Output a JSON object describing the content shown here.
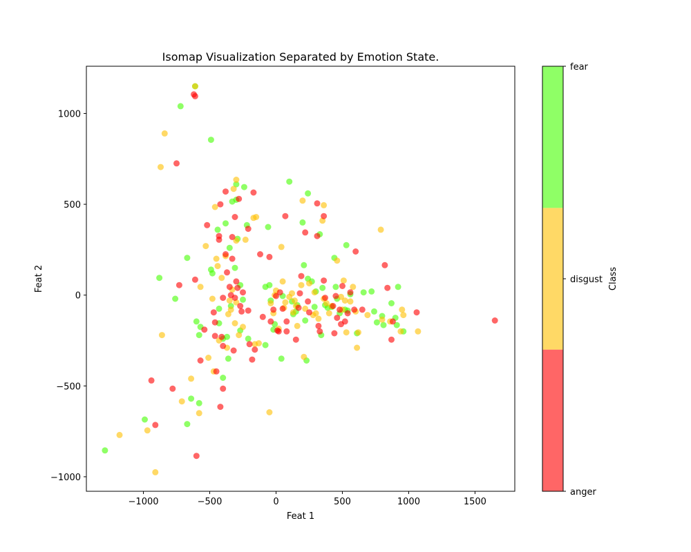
{
  "chart_data": {
    "type": "scatter",
    "title": "Isomap Visualization Separated by Emotion State.",
    "xlabel": "Feat 1",
    "ylabel": "Feat 2",
    "xlim": [
      -1430,
      1800
    ],
    "ylim": [
      -1080,
      1260
    ],
    "xticks": [
      -1000,
      -500,
      0,
      500,
      1000,
      1500
    ],
    "yticks": [
      -1000,
      -500,
      0,
      500,
      1000
    ],
    "grid": false,
    "colorbar": {
      "label": "Class",
      "classes": [
        "anger",
        "disgust",
        "fear"
      ],
      "colors": [
        "#ff0000",
        "#ffc000",
        "#44ff00"
      ],
      "alpha": 0.6
    },
    "series": [
      {
        "name": "fear",
        "color": "#44ff00",
        "points": [
          [
            -1290,
            -855
          ],
          [
            -990,
            -685
          ],
          [
            -670,
            -710
          ],
          [
            -640,
            -570
          ],
          [
            -580,
            -595
          ],
          [
            -720,
            1040
          ],
          [
            -610,
            1150
          ],
          [
            -490,
            855
          ],
          [
            -880,
            95
          ],
          [
            -760,
            -20
          ],
          [
            -670,
            205
          ],
          [
            -600,
            -145
          ],
          [
            -570,
            -175
          ],
          [
            -580,
            -220
          ],
          [
            -490,
            140
          ],
          [
            -480,
            120
          ],
          [
            -440,
            360
          ],
          [
            -380,
            395
          ],
          [
            -350,
            260
          ],
          [
            -340,
            -60
          ],
          [
            -330,
            515
          ],
          [
            -310,
            150
          ],
          [
            -300,
            525
          ],
          [
            -290,
            310
          ],
          [
            -270,
            55
          ],
          [
            -240,
            595
          ],
          [
            -220,
            385
          ],
          [
            -250,
            -25
          ],
          [
            -430,
            -75
          ],
          [
            -430,
            -155
          ],
          [
            -400,
            -240
          ],
          [
            -370,
            -230
          ],
          [
            -360,
            -350
          ],
          [
            -400,
            -455
          ],
          [
            -300,
            610
          ],
          [
            -270,
            -195
          ],
          [
            -210,
            -240
          ],
          [
            -80,
            -275
          ],
          [
            -80,
            45
          ],
          [
            -60,
            375
          ],
          [
            -50,
            55
          ],
          [
            -40,
            -30
          ],
          [
            -20,
            -190
          ],
          [
            -10,
            -160
          ],
          [
            40,
            -350
          ],
          [
            50,
            -5
          ],
          [
            100,
            625
          ],
          [
            120,
            -35
          ],
          [
            130,
            -105
          ],
          [
            150,
            -90
          ],
          [
            160,
            -55
          ],
          [
            200,
            400
          ],
          [
            210,
            165
          ],
          [
            220,
            -140
          ],
          [
            230,
            -360
          ],
          [
            240,
            560
          ],
          [
            240,
            90
          ],
          [
            270,
            75
          ],
          [
            290,
            -65
          ],
          [
            300,
            20
          ],
          [
            330,
            335
          ],
          [
            340,
            -220
          ],
          [
            350,
            40
          ],
          [
            370,
            -55
          ],
          [
            390,
            -70
          ],
          [
            420,
            -65
          ],
          [
            440,
            205
          ],
          [
            450,
            45
          ],
          [
            460,
            -20
          ],
          [
            480,
            -100
          ],
          [
            520,
            -80
          ],
          [
            530,
            275
          ],
          [
            540,
            -85
          ],
          [
            560,
            5
          ],
          [
            610,
            -210
          ],
          [
            660,
            15
          ],
          [
            720,
            20
          ],
          [
            740,
            -90
          ],
          [
            760,
            -150
          ],
          [
            800,
            -115
          ],
          [
            810,
            -165
          ],
          [
            870,
            -45
          ],
          [
            900,
            -125
          ],
          [
            910,
            -165
          ],
          [
            920,
            45
          ],
          [
            960,
            -200
          ]
        ]
      },
      {
        "name": "disgust",
        "color": "#ffc000",
        "points": [
          [
            -1180,
            -770
          ],
          [
            -970,
            -745
          ],
          [
            -910,
            -975
          ],
          [
            -870,
            705
          ],
          [
            -860,
            -220
          ],
          [
            -840,
            890
          ],
          [
            -710,
            -585
          ],
          [
            -640,
            -460
          ],
          [
            -610,
            1150
          ],
          [
            -580,
            -650
          ],
          [
            -570,
            45
          ],
          [
            -530,
            270
          ],
          [
            -510,
            -345
          ],
          [
            -480,
            -20
          ],
          [
            -470,
            -420
          ],
          [
            -460,
            485
          ],
          [
            -450,
            200
          ],
          [
            -440,
            160
          ],
          [
            -430,
            -250
          ],
          [
            -410,
            95
          ],
          [
            -380,
            215
          ],
          [
            -370,
            -290
          ],
          [
            -360,
            -105
          ],
          [
            -350,
            -30
          ],
          [
            -340,
            -80
          ],
          [
            -330,
            30
          ],
          [
            -320,
            585
          ],
          [
            -310,
            -155
          ],
          [
            -300,
            635
          ],
          [
            -300,
            300
          ],
          [
            -300,
            -40
          ],
          [
            -280,
            -220
          ],
          [
            -250,
            -175
          ],
          [
            -230,
            305
          ],
          [
            -170,
            425
          ],
          [
            -160,
            -270
          ],
          [
            -150,
            430
          ],
          [
            -130,
            -265
          ],
          [
            -50,
            -645
          ],
          [
            -40,
            -45
          ],
          [
            -20,
            -100
          ],
          [
            -10,
            0
          ],
          [
            0,
            25
          ],
          [
            20,
            -185
          ],
          [
            40,
            265
          ],
          [
            50,
            75
          ],
          [
            60,
            -70
          ],
          [
            70,
            -40
          ],
          [
            100,
            -10
          ],
          [
            120,
            10
          ],
          [
            130,
            -95
          ],
          [
            140,
            -30
          ],
          [
            150,
            -60
          ],
          [
            160,
            -170
          ],
          [
            190,
            55
          ],
          [
            200,
            520
          ],
          [
            210,
            -340
          ],
          [
            220,
            -75
          ],
          [
            250,
            65
          ],
          [
            280,
            -110
          ],
          [
            290,
            15
          ],
          [
            300,
            -100
          ],
          [
            320,
            -130
          ],
          [
            350,
            410
          ],
          [
            360,
            495
          ],
          [
            360,
            -20
          ],
          [
            380,
            -45
          ],
          [
            400,
            -100
          ],
          [
            420,
            -60
          ],
          [
            460,
            190
          ],
          [
            490,
            -10
          ],
          [
            500,
            -80
          ],
          [
            510,
            80
          ],
          [
            520,
            -30
          ],
          [
            530,
            -205
          ],
          [
            560,
            -35
          ],
          [
            580,
            45
          ],
          [
            600,
            -90
          ],
          [
            610,
            -290
          ],
          [
            620,
            -205
          ],
          [
            690,
            -110
          ],
          [
            790,
            360
          ],
          [
            800,
            -135
          ],
          [
            860,
            -145
          ],
          [
            940,
            -200
          ],
          [
            950,
            -80
          ],
          [
            960,
            -110
          ],
          [
            1070,
            -200
          ]
        ]
      },
      {
        "name": "anger",
        "color": "#ff0000",
        "points": [
          [
            -940,
            -470
          ],
          [
            -910,
            -715
          ],
          [
            -780,
            -515
          ],
          [
            -750,
            725
          ],
          [
            -730,
            55
          ],
          [
            -620,
            1105
          ],
          [
            -610,
            1095
          ],
          [
            -610,
            85
          ],
          [
            -600,
            -885
          ],
          [
            -570,
            -360
          ],
          [
            -540,
            -190
          ],
          [
            -520,
            385
          ],
          [
            -470,
            -95
          ],
          [
            -460,
            -150
          ],
          [
            -460,
            -225
          ],
          [
            -450,
            -420
          ],
          [
            -430,
            305
          ],
          [
            -430,
            325
          ],
          [
            -420,
            500
          ],
          [
            -420,
            -615
          ],
          [
            -410,
            -230
          ],
          [
            -400,
            -15
          ],
          [
            -400,
            -280
          ],
          [
            -400,
            -515
          ],
          [
            -380,
            225
          ],
          [
            -380,
            570
          ],
          [
            -370,
            125
          ],
          [
            -350,
            45
          ],
          [
            -340,
            0
          ],
          [
            -330,
            320
          ],
          [
            -330,
            200
          ],
          [
            -320,
            -305
          ],
          [
            -310,
            430
          ],
          [
            -310,
            -15
          ],
          [
            -300,
            75
          ],
          [
            -290,
            40
          ],
          [
            -280,
            530
          ],
          [
            -270,
            -60
          ],
          [
            -260,
            -90
          ],
          [
            -250,
            15
          ],
          [
            -210,
            365
          ],
          [
            -210,
            -85
          ],
          [
            -200,
            -270
          ],
          [
            -180,
            -355
          ],
          [
            -170,
            565
          ],
          [
            -160,
            -300
          ],
          [
            -120,
            225
          ],
          [
            -100,
            -120
          ],
          [
            -50,
            210
          ],
          [
            -40,
            -145
          ],
          [
            -20,
            -80
          ],
          [
            0,
            -5
          ],
          [
            10,
            -195
          ],
          [
            20,
            -200
          ],
          [
            30,
            15
          ],
          [
            50,
            -75
          ],
          [
            70,
            435
          ],
          [
            80,
            -200
          ],
          [
            80,
            -145
          ],
          [
            150,
            -245
          ],
          [
            170,
            -70
          ],
          [
            180,
            10
          ],
          [
            190,
            105
          ],
          [
            220,
            345
          ],
          [
            240,
            -35
          ],
          [
            250,
            -95
          ],
          [
            310,
            505
          ],
          [
            310,
            325
          ],
          [
            320,
            -170
          ],
          [
            330,
            -200
          ],
          [
            360,
            435
          ],
          [
            360,
            80
          ],
          [
            370,
            -15
          ],
          [
            430,
            -60
          ],
          [
            440,
            -210
          ],
          [
            450,
            -5
          ],
          [
            460,
            -125
          ],
          [
            480,
            -80
          ],
          [
            490,
            -160
          ],
          [
            500,
            50
          ],
          [
            520,
            -145
          ],
          [
            540,
            -100
          ],
          [
            560,
            15
          ],
          [
            590,
            -80
          ],
          [
            600,
            240
          ],
          [
            650,
            -80
          ],
          [
            820,
            165
          ],
          [
            840,
            40
          ],
          [
            870,
            -245
          ],
          [
            880,
            -145
          ],
          [
            1060,
            -95
          ],
          [
            1650,
            -140
          ]
        ]
      }
    ]
  }
}
